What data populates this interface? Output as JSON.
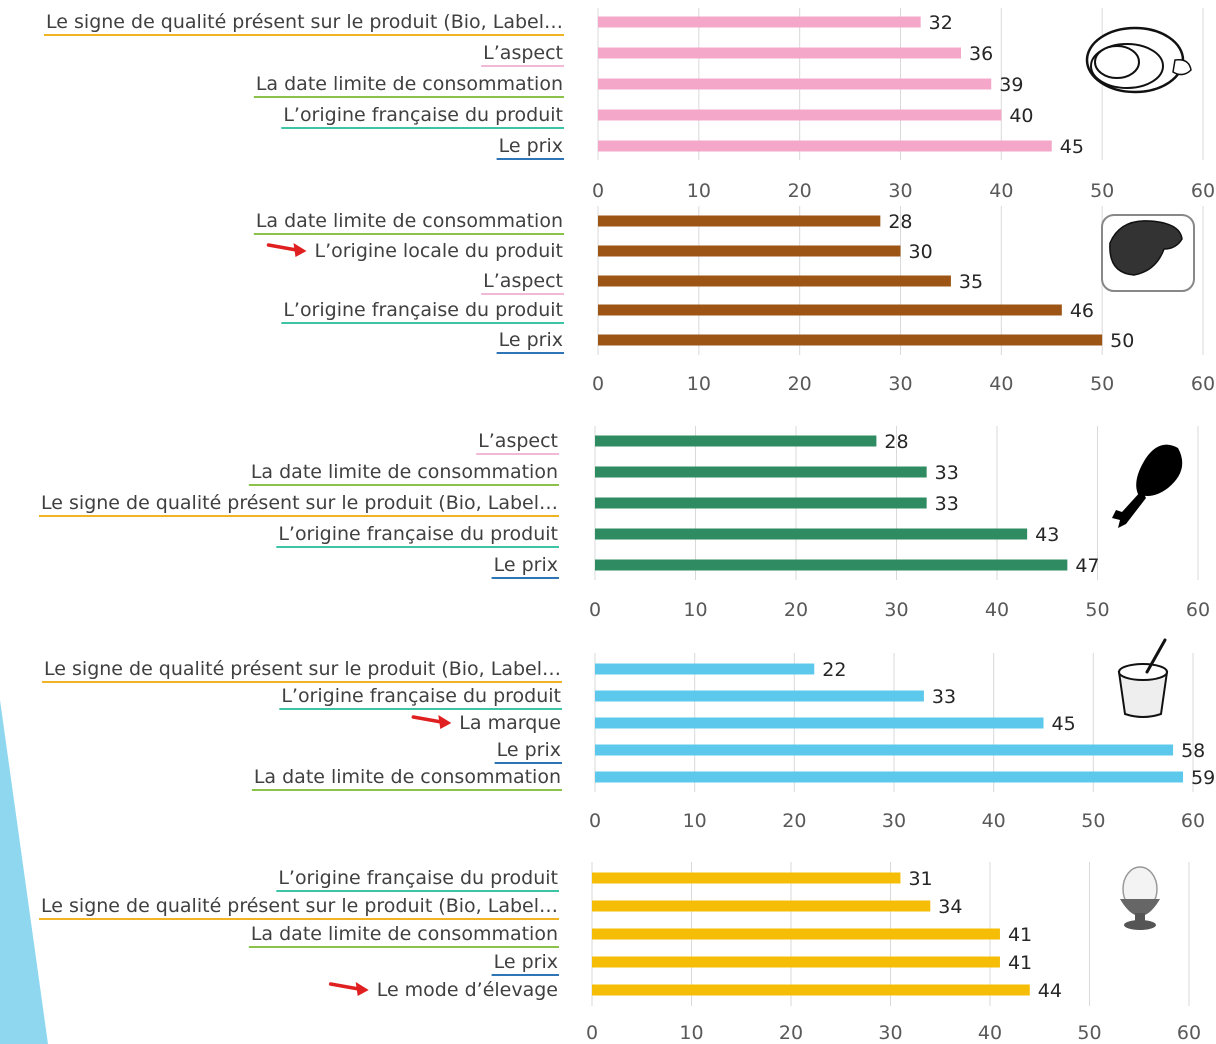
{
  "colors": {
    "label_underlines": {
      "Le signe de qualité présent sur le produit (Bio, Label…": "#f0b323",
      "L’aspect": "#f2b8d8",
      "La date limite de consommation": "#8bc34a",
      "L’origine française du produit": "#3cc4a4",
      "Le prix": "#2e75b6",
      "L’origine locale du produit": "#ffffff",
      "La marque": "#ffffff",
      "Le mode d’élevage": "#ffffff"
    },
    "arrow": "#e02020",
    "left_accent": "#8fd7ee"
  },
  "chart_data": [
    {
      "type": "bar",
      "orientation": "horizontal",
      "icon": "ham-icon",
      "color": "#f4a7c9",
      "categories": [
        "Le signe de qualité présent sur le produit (Bio, Label…",
        "L’aspect",
        "La date limite de consommation",
        "L’origine française du produit",
        "Le prix"
      ],
      "values": [
        32,
        36,
        39,
        40,
        45
      ],
      "highlighted": [],
      "xlim": [
        0,
        60
      ],
      "ticks": [
        "0",
        "10",
        "20",
        "30",
        "40",
        "50",
        "60"
      ]
    },
    {
      "type": "bar",
      "orientation": "horizontal",
      "icon": "beef-steak-icon",
      "color": "#9c5514",
      "categories": [
        "La date limite de consommation",
        "L’origine locale du produit",
        "L’aspect",
        "L’origine française du produit",
        "Le prix"
      ],
      "values": [
        28,
        30,
        35,
        46,
        50
      ],
      "highlighted": [
        "L’origine locale du produit"
      ],
      "xlim": [
        0,
        60
      ],
      "ticks": [
        "0",
        "10",
        "20",
        "30",
        "40",
        "50",
        "60"
      ]
    },
    {
      "type": "bar",
      "orientation": "horizontal",
      "icon": "chicken-leg-icon",
      "color": "#2e8b62",
      "categories": [
        "L’aspect",
        "La date limite de consommation",
        "Le signe de qualité présent sur le produit (Bio, Label…",
        "L’origine française du produit",
        "Le prix"
      ],
      "values": [
        28,
        33,
        33,
        43,
        47
      ],
      "highlighted": [],
      "xlim": [
        0,
        60
      ],
      "ticks": [
        "0",
        "10",
        "20",
        "30",
        "40",
        "50",
        "60"
      ]
    },
    {
      "type": "bar",
      "orientation": "horizontal",
      "icon": "yogurt-icon",
      "color": "#5bc8ec",
      "categories": [
        "Le signe de qualité présent sur le produit (Bio, Label…",
        "L’origine française du produit",
        "La marque",
        "Le prix",
        "La date limite de consommation"
      ],
      "values": [
        22,
        33,
        45,
        58,
        59
      ],
      "highlighted": [
        "La marque"
      ],
      "xlim": [
        0,
        60
      ],
      "ticks": [
        "0",
        "10",
        "20",
        "30",
        "40",
        "50",
        "60"
      ]
    },
    {
      "type": "bar",
      "orientation": "horizontal",
      "icon": "egg-cup-icon",
      "color": "#f5bd06",
      "categories": [
        "L’origine française du produit",
        "Le signe de qualité présent sur le produit (Bio, Label…",
        "La date limite de consommation",
        "Le prix",
        "Le mode d’élevage"
      ],
      "values": [
        31,
        34,
        41,
        41,
        44
      ],
      "highlighted": [
        "Le mode d’élevage"
      ],
      "xlim": [
        0,
        60
      ],
      "ticks": [
        "0",
        "10",
        "20",
        "30",
        "40",
        "50",
        "60"
      ]
    }
  ]
}
